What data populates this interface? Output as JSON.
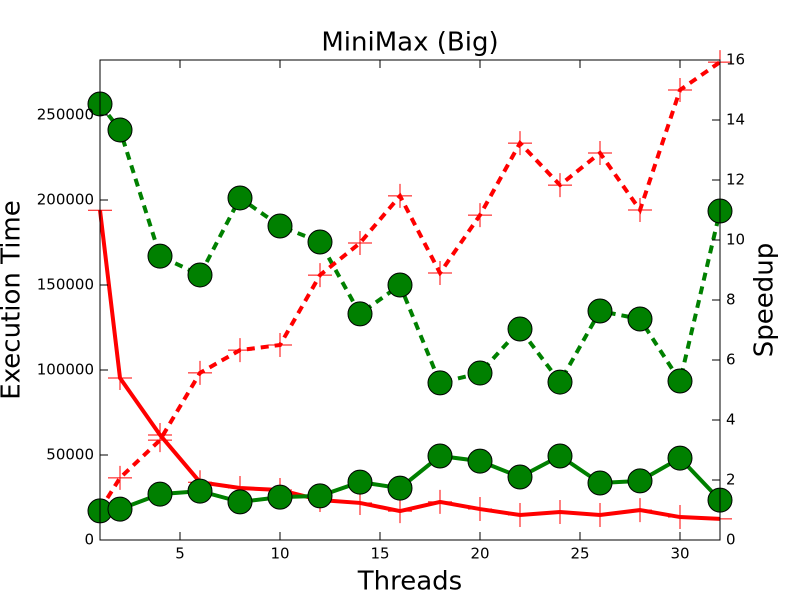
{
  "chart_data": {
    "type": "line",
    "title": "MiniMax (Big)",
    "x_label": "Threads",
    "y_label": "Execution Time",
    "y2_label": "Speedup",
    "x": [
      1,
      2,
      4,
      6,
      8,
      10,
      12,
      14,
      16,
      18,
      20,
      22,
      24,
      26,
      28,
      30,
      32
    ],
    "xlim": [
      1,
      32
    ],
    "xticks": [
      5,
      10,
      15,
      20,
      25,
      30
    ],
    "ylim": [
      0,
      282353
    ],
    "yticks": [
      0,
      50000,
      100000,
      150000,
      200000,
      250000
    ],
    "y2lim": [
      0,
      16
    ],
    "y2ticks": [
      0,
      2,
      4,
      6,
      8,
      10,
      12,
      14,
      16
    ],
    "grid": false,
    "series": [
      {
        "color": "#ff0000",
        "linestyle": "solid",
        "marker": "plus",
        "axis": "y",
        "values": [
          194000,
          95300,
          61800,
          34000,
          30600,
          29400,
          23500,
          21800,
          17000,
          22400,
          18200,
          14700,
          16500,
          14700,
          17600,
          13500,
          12400
        ]
      },
      {
        "color": "#008000",
        "linestyle": "dashed",
        "marker": "circle",
        "axis": "y",
        "values": [
          256500,
          241200,
          167000,
          155900,
          201200,
          184700,
          175300,
          133000,
          150000,
          92400,
          98200,
          124100,
          92900,
          134700,
          130000,
          93500,
          193500
        ]
      },
      {
        "color": "#ff0000",
        "linestyle": "dashed",
        "marker": "plus",
        "axis": "y2",
        "values": [
          1.0,
          2.07,
          3.33,
          5.57,
          6.33,
          6.5,
          8.83,
          9.9,
          11.47,
          8.9,
          10.83,
          13.23,
          11.83,
          12.9,
          11.0,
          15.0,
          15.93
        ]
      },
      {
        "color": "#008000",
        "linestyle": "solid",
        "marker": "circle",
        "axis": "y2",
        "values": [
          0.97,
          1.03,
          1.53,
          1.63,
          1.27,
          1.43,
          1.47,
          1.93,
          1.73,
          2.8,
          2.63,
          2.1,
          2.8,
          1.9,
          1.97,
          2.73,
          1.33
        ]
      }
    ]
  }
}
